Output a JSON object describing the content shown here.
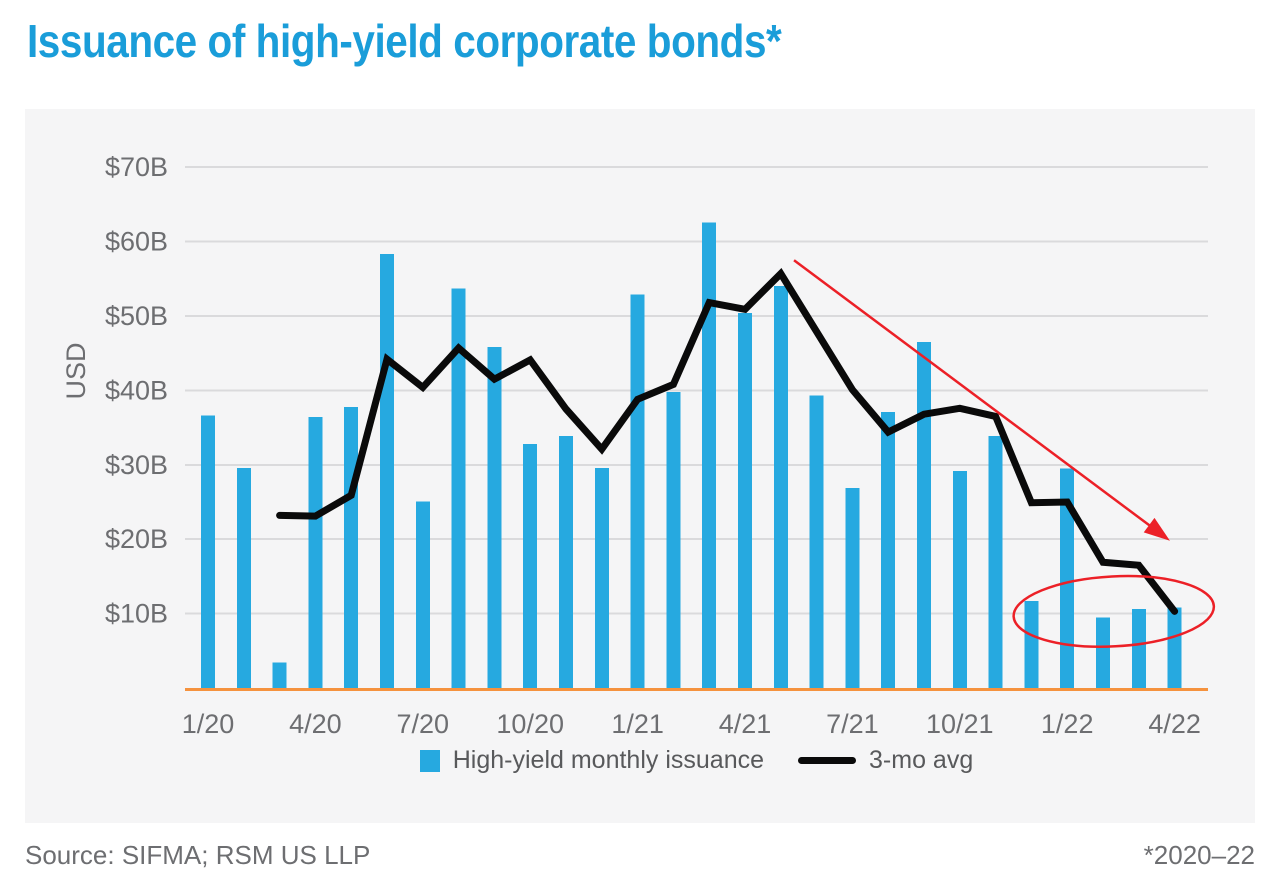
{
  "page": {
    "title": "Issuance of high-yield corporate bonds*",
    "source": "Source: SIFMA; RSM US LLP",
    "footnote": "*2020–22"
  },
  "colors": {
    "title_blue": "#1a9dd9",
    "bar_blue": "#26a9e0",
    "avg_line_black": "#0a0a0a",
    "annotation_red": "#ec2027",
    "baseline_orange": "#f5923e",
    "gridline_gray": "#dadadc",
    "panel_background": "#f5f5f6",
    "axis_text_gray": "#6d6e71",
    "legend_text_gray": "#58595b"
  },
  "chart_data": {
    "type": "bar",
    "subtype": "combo-bar-line",
    "title": "Issuance of high-yield corporate bonds*",
    "ylabel": "USD",
    "y_axis": {
      "ticks": [
        "$70B",
        "$60B",
        "$50B",
        "$40B",
        "$30B",
        "$20B",
        "$10B"
      ],
      "tick_values": [
        70,
        60,
        50,
        40,
        30,
        20,
        10
      ],
      "ylim": [
        0,
        75
      ],
      "unit": "USD billions",
      "grid": true
    },
    "x_axis": {
      "tick_labels": [
        "1/20",
        "4/20",
        "7/20",
        "10/20",
        "1/21",
        "4/21",
        "7/21",
        "10/21",
        "1/22",
        "4/22"
      ],
      "tick_every_months": 3
    },
    "categories": [
      "1/20",
      "2/20",
      "3/20",
      "4/20",
      "5/20",
      "6/20",
      "7/20",
      "8/20",
      "9/20",
      "10/20",
      "11/20",
      "12/20",
      "1/21",
      "2/21",
      "3/21",
      "4/21",
      "5/21",
      "6/21",
      "7/21",
      "8/21",
      "9/21",
      "10/21",
      "11/21",
      "12/21",
      "1/22",
      "2/22",
      "3/22",
      "4/22"
    ],
    "series": [
      {
        "name": "High-yield monthly issuance",
        "type": "bar",
        "color": "#26a9e0",
        "values": [
          36.6,
          29.6,
          3.4,
          36.4,
          37.8,
          58.3,
          25.1,
          53.7,
          45.8,
          32.8,
          33.9,
          29.6,
          52.9,
          39.8,
          62.6,
          50.4,
          54.0,
          39.3,
          26.9,
          37.1,
          46.5,
          29.2,
          33.9,
          11.7,
          29.5,
          9.5,
          10.6,
          10.8
        ]
      },
      {
        "name": "3-mo avg",
        "type": "line",
        "color": "#0a0a0a",
        "values": [
          null,
          null,
          23.2,
          23.1,
          25.9,
          44.2,
          40.4,
          45.7,
          41.5,
          44.1,
          37.5,
          32.1,
          38.8,
          40.8,
          51.8,
          50.9,
          55.7,
          47.9,
          40.1,
          34.4,
          36.8,
          37.6,
          36.5,
          24.9,
          25.0,
          16.9,
          16.5,
          10.3
        ]
      }
    ],
    "legend": {
      "position": "bottom-center",
      "entries": [
        "High-yield monthly issuance",
        "3-mo avg"
      ]
    },
    "annotations": {
      "trend_arrow": {
        "description": "straight red arrow sloping down from above 5/21 peak toward 4/22",
        "color": "#ec2027",
        "from": {
          "month_index": 16.37,
          "value": 57.5
        },
        "to": {
          "month_index": 26.87,
          "value": 19.8
        }
      },
      "highlight_ellipse": {
        "description": "red ellipse circling the low issuance bars from 12/21 through 4/22",
        "color": "#ec2027",
        "center_month_index": 25.3,
        "center_value": 10.3,
        "rx_months": 2.8,
        "ry_value": 4.7
      }
    }
  }
}
